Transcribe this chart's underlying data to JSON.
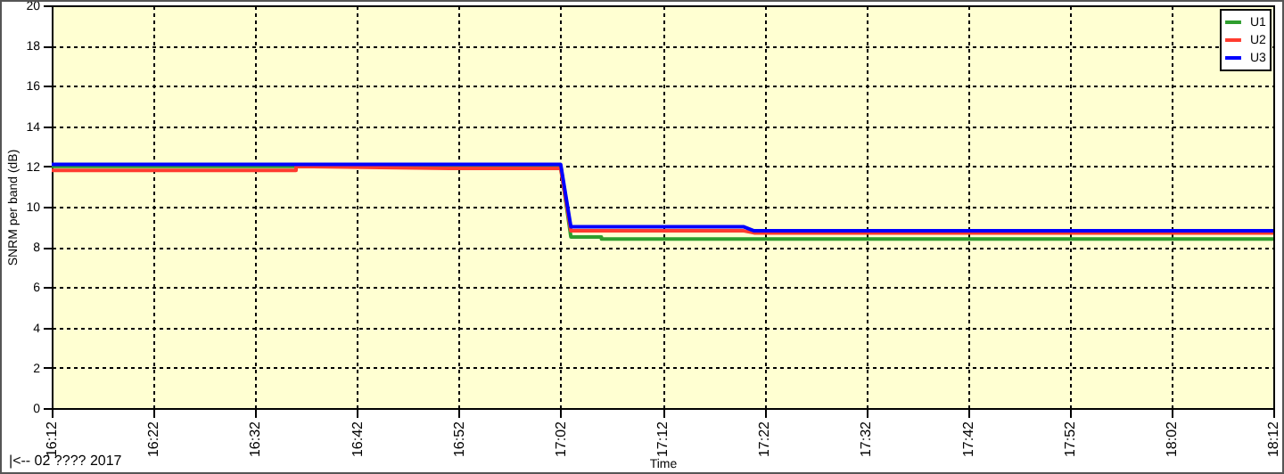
{
  "chart_data": {
    "type": "line",
    "xlabel": "Time",
    "ylabel": "SNRM per band (dB)",
    "xlim": [
      16.2,
      18.2
    ],
    "ylim": [
      0,
      20
    ],
    "xticks": [
      {
        "value": 16.2,
        "label": "16:12"
      },
      {
        "value": 16.3667,
        "label": "16:22"
      },
      {
        "value": 16.5333,
        "label": "16:32"
      },
      {
        "value": 16.7,
        "label": "16:42"
      },
      {
        "value": 16.8667,
        "label": "16:52"
      },
      {
        "value": 17.0333,
        "label": "17:02"
      },
      {
        "value": 17.2,
        "label": "17:12"
      },
      {
        "value": 17.3667,
        "label": "17:22"
      },
      {
        "value": 17.5333,
        "label": "17:32"
      },
      {
        "value": 17.7,
        "label": "17:42"
      },
      {
        "value": 17.8667,
        "label": "17:52"
      },
      {
        "value": 18.0333,
        "label": "18:02"
      },
      {
        "value": 18.2,
        "label": "18:12"
      }
    ],
    "yticks": [
      0,
      2,
      4,
      6,
      8,
      10,
      12,
      14,
      16,
      18,
      20
    ],
    "grid": true,
    "legend": "top right",
    "marker": "none",
    "line_style": "solid",
    "annotations": [
      "|<-- 02 ???? 2017"
    ],
    "series": [
      {
        "name": "U1",
        "color": "#2e9e2e",
        "x": [
          16.2,
          17.0333,
          17.05,
          17.1,
          17.1,
          18.2
        ],
        "values": [
          12.0,
          12.0,
          8.5,
          8.5,
          8.4,
          8.4
        ]
      },
      {
        "name": "U2",
        "color": "#ff3b2f",
        "x": [
          16.2,
          16.6,
          16.6,
          16.85,
          17.0333,
          17.05,
          17.3333,
          17.35,
          18.2
        ],
        "values": [
          11.8,
          11.8,
          12.0,
          11.9,
          11.9,
          8.8,
          8.8,
          8.7,
          8.7
        ]
      },
      {
        "name": "U3",
        "color": "#0000ff",
        "x": [
          16.2,
          17.0333,
          17.05,
          17.3333,
          17.35,
          18.2
        ],
        "values": [
          12.1,
          12.1,
          9.0,
          9.0,
          8.8,
          8.8
        ]
      }
    ]
  }
}
